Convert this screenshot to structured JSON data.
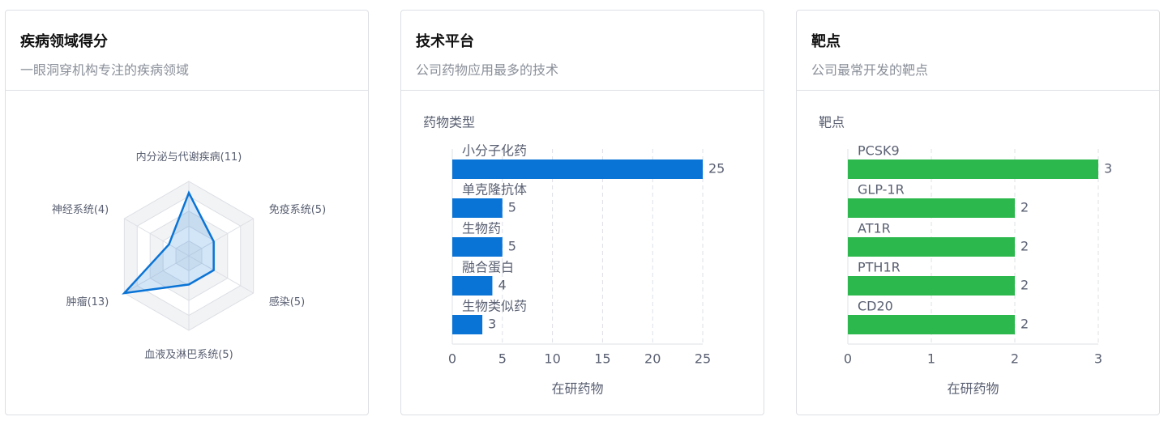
{
  "cards": [
    {
      "title": "疾病领域得分",
      "subtitle": "一眼洞穿机构专注的疾病领域",
      "chart_data": {
        "type": "radar",
        "color": "#0a74d6",
        "categories": [
          "内分泌与代谢疾病",
          "免疫系统",
          "感染",
          "血液及淋巴系统",
          "肿瘤",
          "神经系统"
        ],
        "values": [
          11,
          5,
          5,
          5,
          13,
          4
        ],
        "value_labels": [
          "(11)",
          "(5)",
          "(5)",
          "(5)",
          "(13)",
          "(4)"
        ]
      }
    },
    {
      "title": "技术平台",
      "subtitle": "公司药物应用最多的技术",
      "chart_data": {
        "type": "hbar",
        "color": "#0a74d6",
        "ylabel": "药物类型",
        "xlabel": "在研药物",
        "categories": [
          "小分子化药",
          "单克隆抗体",
          "生物药",
          "融合蛋白",
          "生物类似药"
        ],
        "values": [
          25,
          5,
          5,
          4,
          3
        ],
        "xlim": [
          0,
          25
        ],
        "xticks": [
          0,
          5,
          10,
          15,
          20,
          25
        ],
        "grid": true
      }
    },
    {
      "title": "靶点",
      "subtitle": "公司最常开发的靶点",
      "chart_data": {
        "type": "hbar",
        "color": "#2db84d",
        "ylabel": "靶点",
        "xlabel": "在研药物",
        "categories": [
          "PCSK9",
          "GLP-1R",
          "AT1R",
          "PTH1R",
          "CD20"
        ],
        "values": [
          3,
          2,
          2,
          2,
          2
        ],
        "xlim": [
          0,
          3
        ],
        "xticks": [
          0,
          1,
          2,
          3
        ],
        "grid": true
      }
    }
  ]
}
